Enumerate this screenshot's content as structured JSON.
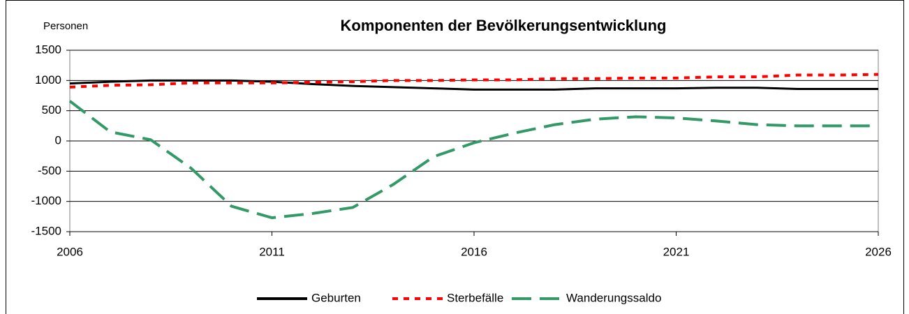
{
  "chart_data": {
    "type": "line",
    "title": "Komponenten der Bevölkerungsentwicklung",
    "y_label": "Personen",
    "x": [
      2006,
      2007,
      2008,
      2009,
      2010,
      2011,
      2012,
      2013,
      2014,
      2015,
      2016,
      2017,
      2018,
      2019,
      2020,
      2021,
      2022,
      2023,
      2024,
      2025,
      2026
    ],
    "xlim": [
      2006,
      2026
    ],
    "xticks": [
      2006,
      2011,
      2016,
      2021,
      2026
    ],
    "ylim": [
      -1500,
      1500
    ],
    "yticks": [
      -1500,
      -1000,
      -500,
      0,
      500,
      1000,
      1500
    ],
    "grid": true,
    "legend": "bottom",
    "series": [
      {
        "name": "Geburten",
        "color": "#000000",
        "style": "solid",
        "values": [
          950,
          980,
          1000,
          1000,
          1000,
          980,
          940,
          910,
          890,
          870,
          850,
          850,
          850,
          870,
          870,
          870,
          880,
          880,
          860,
          860,
          860
        ]
      },
      {
        "name": "Sterbefälle",
        "color": "#ff0000",
        "style": "dotted",
        "values": [
          890,
          920,
          930,
          960,
          960,
          960,
          970,
          980,
          1000,
          1000,
          1010,
          1010,
          1030,
          1030,
          1040,
          1040,
          1060,
          1060,
          1090,
          1090,
          1100
        ]
      },
      {
        "name": "Wanderungssaldo",
        "color": "#339966",
        "style": "dashed",
        "values": [
          660,
          150,
          20,
          -450,
          -1080,
          -1270,
          -1200,
          -1100,
          -720,
          -260,
          -30,
          130,
          270,
          360,
          400,
          380,
          330,
          270,
          250,
          250,
          250
        ]
      }
    ]
  }
}
